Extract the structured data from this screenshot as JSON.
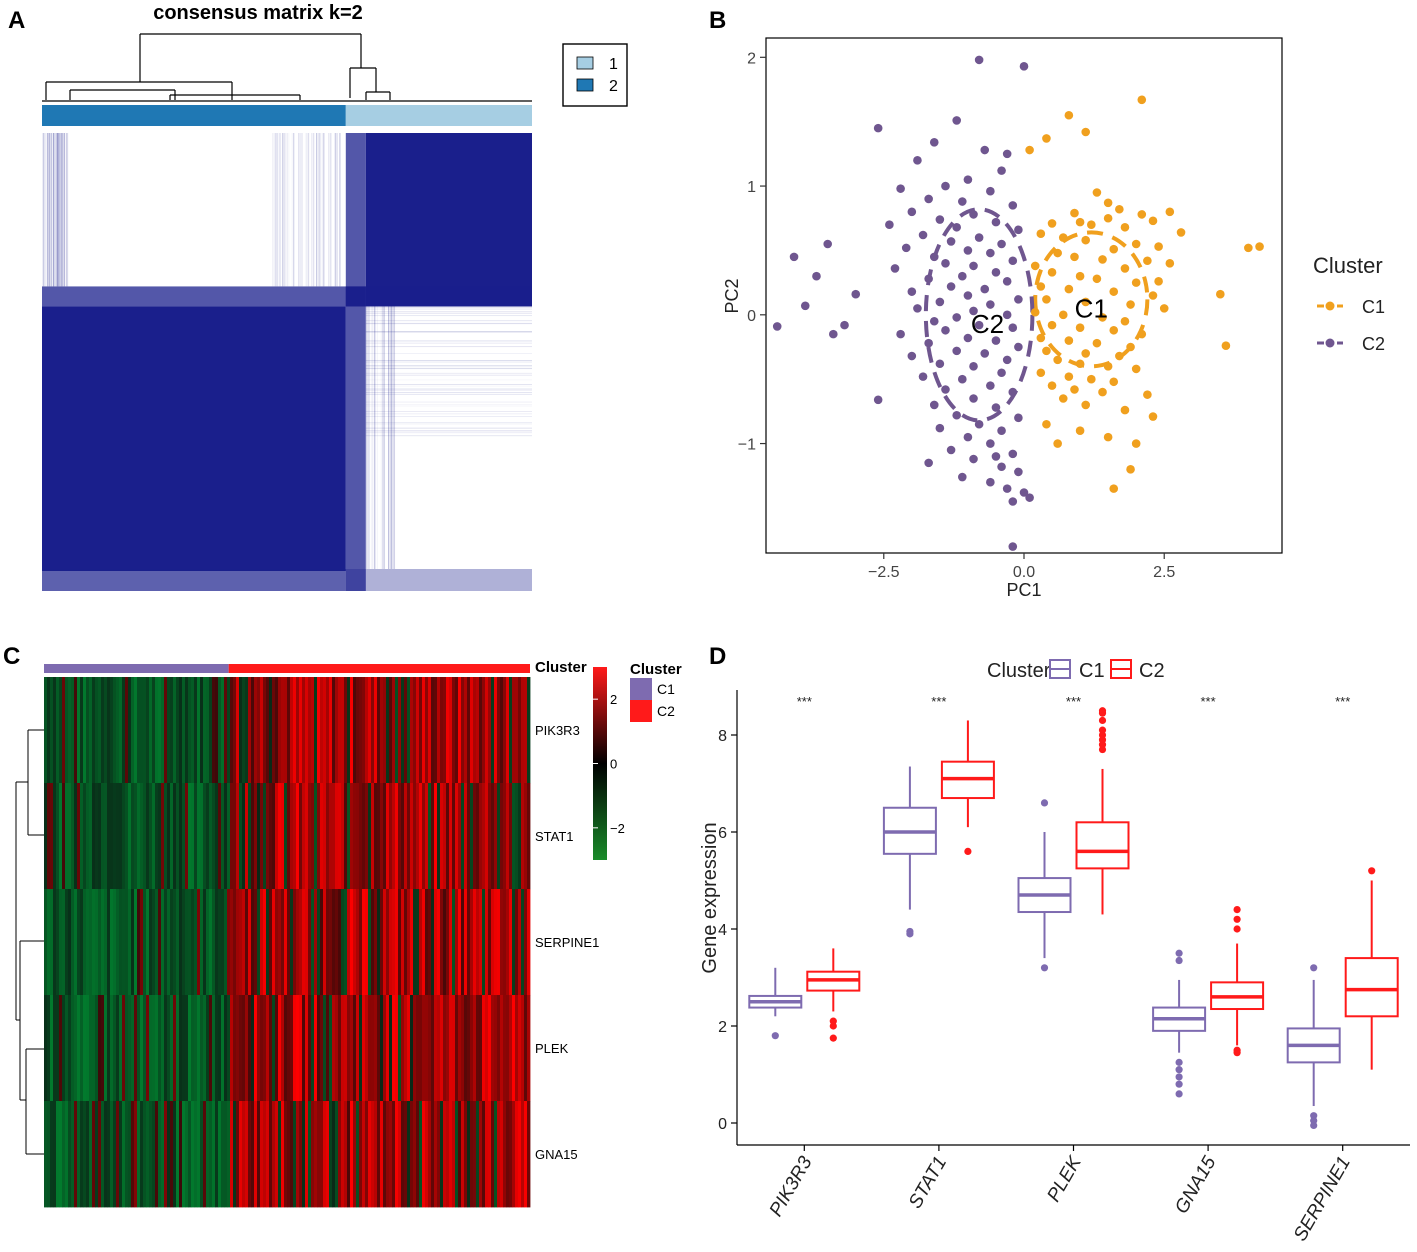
{
  "chart_data": [
    {
      "panel": "A",
      "type": "heatmap",
      "title": "consensus matrix k=2",
      "legend": {
        "entries": [
          "1",
          "2"
        ],
        "colors": [
          "#a6cee3",
          "#1f78b4"
        ],
        "placement": "top-right"
      },
      "cluster_bar": [
        {
          "cluster": "2",
          "fraction": 0.62
        },
        {
          "cluster": "1",
          "fraction": 0.38
        }
      ],
      "blocks": [
        {
          "rows": "cluster 2",
          "cols": "cluster 2",
          "value": 1
        },
        {
          "rows": "cluster 1",
          "cols": "cluster 1",
          "value": 1
        },
        {
          "rows": "cluster 1",
          "cols": "cluster 2",
          "value": 0
        },
        {
          "rows": "cluster 2",
          "cols": "cluster 1",
          "value": 0
        }
      ],
      "colors": {
        "high": "#1a1f8c",
        "low": "#ffffff"
      }
    },
    {
      "panel": "B",
      "type": "scatter",
      "xlabel": "PC1",
      "ylabel": "PC2",
      "xlim": [
        -4.6,
        4.6
      ],
      "ylim": [
        -1.85,
        2.15
      ],
      "xticks": [
        {
          "v": -2.5,
          "t": "−2.5"
        },
        {
          "v": 0,
          "t": "0.0"
        },
        {
          "v": 2.5,
          "t": "2.5"
        }
      ],
      "yticks": [
        {
          "v": -1,
          "t": "−1"
        },
        {
          "v": 0,
          "t": "0"
        },
        {
          "v": 1,
          "t": "1"
        },
        {
          "v": 2,
          "t": "2"
        }
      ],
      "legend_title": "Cluster",
      "series": [
        {
          "name": "C1",
          "color": "#f0a01e",
          "center": [
            1.2,
            0.12
          ],
          "ellipse": [
            1.0,
            0.52
          ],
          "points": [
            [
              2.1,
              1.67
            ],
            [
              0.8,
              1.55
            ],
            [
              1.1,
              1.42
            ],
            [
              0.4,
              1.37
            ],
            [
              0.1,
              1.28
            ],
            [
              1.3,
              0.95
            ],
            [
              1.5,
              0.87
            ],
            [
              1.7,
              0.82
            ],
            [
              2.1,
              0.78
            ],
            [
              2.6,
              0.8
            ],
            [
              0.9,
              0.79
            ],
            [
              1.5,
              0.75
            ],
            [
              2.3,
              0.73
            ],
            [
              0.5,
              0.71
            ],
            [
              1.0,
              0.72
            ],
            [
              1.2,
              0.7
            ],
            [
              1.8,
              0.68
            ],
            [
              2.8,
              0.64
            ],
            [
              0.3,
              0.63
            ],
            [
              0.7,
              0.6
            ],
            [
              1.1,
              0.58
            ],
            [
              2.0,
              0.55
            ],
            [
              2.4,
              0.53
            ],
            [
              1.6,
              0.51
            ],
            [
              0.6,
              0.48
            ],
            [
              0.9,
              0.45
            ],
            [
              1.4,
              0.43
            ],
            [
              2.2,
              0.42
            ],
            [
              2.6,
              0.4
            ],
            [
              0.2,
              0.38
            ],
            [
              1.8,
              0.36
            ],
            [
              0.5,
              0.33
            ],
            [
              1.0,
              0.3
            ],
            [
              1.3,
              0.28
            ],
            [
              2.0,
              0.25
            ],
            [
              2.4,
              0.26
            ],
            [
              0.3,
              0.22
            ],
            [
              0.8,
              0.2
            ],
            [
              1.6,
              0.18
            ],
            [
              2.3,
              0.15
            ],
            [
              0.4,
              0.12
            ],
            [
              1.1,
              0.1
            ],
            [
              1.9,
              0.08
            ],
            [
              2.5,
              0.05
            ],
            [
              0.2,
              0.02
            ],
            [
              0.7,
              0.0
            ],
            [
              1.4,
              -0.02
            ],
            [
              1.8,
              -0.05
            ],
            [
              0.5,
              -0.08
            ],
            [
              1.0,
              -0.1
            ],
            [
              1.6,
              -0.12
            ],
            [
              2.1,
              -0.15
            ],
            [
              0.3,
              -0.18
            ],
            [
              0.8,
              -0.2
            ],
            [
              1.3,
              -0.22
            ],
            [
              1.9,
              -0.25
            ],
            [
              0.4,
              -0.28
            ],
            [
              1.1,
              -0.3
            ],
            [
              1.7,
              -0.32
            ],
            [
              0.6,
              -0.35
            ],
            [
              1.0,
              -0.38
            ],
            [
              1.5,
              -0.4
            ],
            [
              2.0,
              -0.42
            ],
            [
              0.3,
              -0.45
            ],
            [
              0.8,
              -0.48
            ],
            [
              1.2,
              -0.5
            ],
            [
              1.6,
              -0.52
            ],
            [
              0.5,
              -0.55
            ],
            [
              0.9,
              -0.58
            ],
            [
              1.4,
              -0.6
            ],
            [
              2.2,
              -0.62
            ],
            [
              0.7,
              -0.65
            ],
            [
              1.1,
              -0.7
            ],
            [
              1.8,
              -0.74
            ],
            [
              2.3,
              -0.79
            ],
            [
              0.4,
              -0.85
            ],
            [
              1.0,
              -0.9
            ],
            [
              1.5,
              -0.95
            ],
            [
              0.6,
              -1.0
            ],
            [
              2.0,
              -1.0
            ],
            [
              1.9,
              -1.2
            ],
            [
              1.6,
              -1.35
            ],
            [
              3.5,
              0.16
            ],
            [
              3.6,
              -0.24
            ],
            [
              4.0,
              0.52
            ],
            [
              4.2,
              0.53
            ]
          ]
        },
        {
          "name": "C2",
          "color": "#6f568f",
          "center": [
            -0.8,
            0.0
          ],
          "ellipse": [
            0.95,
            0.82
          ],
          "points": [
            [
              -0.8,
              1.98
            ],
            [
              0.0,
              1.93
            ],
            [
              -2.6,
              1.45
            ],
            [
              -1.2,
              1.51
            ],
            [
              -1.6,
              1.34
            ],
            [
              -0.7,
              1.28
            ],
            [
              -0.3,
              1.25
            ],
            [
              -1.9,
              1.2
            ],
            [
              -0.4,
              1.12
            ],
            [
              -1.0,
              1.05
            ],
            [
              -1.4,
              1.0
            ],
            [
              -2.2,
              0.98
            ],
            [
              -0.6,
              0.96
            ],
            [
              -1.7,
              0.9
            ],
            [
              -1.1,
              0.88
            ],
            [
              -0.2,
              0.85
            ],
            [
              -2.0,
              0.8
            ],
            [
              -0.9,
              0.78
            ],
            [
              -1.5,
              0.74
            ],
            [
              -0.5,
              0.72
            ],
            [
              -2.4,
              0.7
            ],
            [
              -1.2,
              0.68
            ],
            [
              -0.1,
              0.66
            ],
            [
              -1.8,
              0.62
            ],
            [
              -0.8,
              0.6
            ],
            [
              -1.3,
              0.57
            ],
            [
              -0.4,
              0.55
            ],
            [
              -2.1,
              0.52
            ],
            [
              -1.0,
              0.5
            ],
            [
              -0.6,
              0.48
            ],
            [
              -1.6,
              0.45
            ],
            [
              -3.5,
              0.55
            ],
            [
              -4.1,
              0.45
            ],
            [
              -3.7,
              0.3
            ],
            [
              -0.2,
              0.42
            ],
            [
              -1.4,
              0.4
            ],
            [
              -0.9,
              0.38
            ],
            [
              -2.3,
              0.36
            ],
            [
              -0.5,
              0.33
            ],
            [
              -1.1,
              0.3
            ],
            [
              -3.0,
              0.16
            ],
            [
              -1.7,
              0.28
            ],
            [
              -0.3,
              0.26
            ],
            [
              -1.3,
              0.22
            ],
            [
              -0.7,
              0.2
            ],
            [
              -2.0,
              0.18
            ],
            [
              -1.0,
              0.15
            ],
            [
              -0.1,
              0.12
            ],
            [
              -1.5,
              0.1
            ],
            [
              -0.6,
              0.08
            ],
            [
              -3.9,
              0.07
            ],
            [
              -1.9,
              0.05
            ],
            [
              -0.9,
              0.03
            ],
            [
              -0.3,
              0.0
            ],
            [
              -1.2,
              -0.02
            ],
            [
              -4.4,
              -0.09
            ],
            [
              -3.4,
              -0.15
            ],
            [
              -3.2,
              -0.08
            ],
            [
              -1.6,
              -0.05
            ],
            [
              -0.8,
              -0.08
            ],
            [
              -0.2,
              -0.1
            ],
            [
              -1.4,
              -0.12
            ],
            [
              -2.2,
              -0.15
            ],
            [
              -1.0,
              -0.18
            ],
            [
              -0.5,
              -0.2
            ],
            [
              -1.7,
              -0.22
            ],
            [
              -0.1,
              -0.25
            ],
            [
              -1.2,
              -0.28
            ],
            [
              -0.7,
              -0.3
            ],
            [
              -2.0,
              -0.32
            ],
            [
              -0.3,
              -0.35
            ],
            [
              -1.5,
              -0.38
            ],
            [
              -0.9,
              -0.4
            ],
            [
              -0.4,
              -0.45
            ],
            [
              -1.8,
              -0.48
            ],
            [
              -1.1,
              -0.5
            ],
            [
              -0.6,
              -0.55
            ],
            [
              -2.6,
              -0.66
            ],
            [
              -1.4,
              -0.58
            ],
            [
              -0.2,
              -0.6
            ],
            [
              -0.9,
              -0.65
            ],
            [
              -1.6,
              -0.7
            ],
            [
              -0.5,
              -0.72
            ],
            [
              -1.2,
              -0.78
            ],
            [
              -0.1,
              -0.8
            ],
            [
              -0.8,
              -0.85
            ],
            [
              -1.5,
              -0.88
            ],
            [
              -0.4,
              -0.9
            ],
            [
              -1.0,
              -0.95
            ],
            [
              -0.6,
              -1.0
            ],
            [
              -1.3,
              -1.05
            ],
            [
              -0.2,
              -1.08
            ],
            [
              -0.9,
              -1.12
            ],
            [
              -1.7,
              -1.15
            ],
            [
              -0.4,
              -1.18
            ],
            [
              -0.1,
              -1.22
            ],
            [
              -1.1,
              -1.26
            ],
            [
              -0.6,
              -1.3
            ],
            [
              -0.3,
              -1.35
            ],
            [
              0.0,
              -1.38
            ],
            [
              -0.2,
              -1.45
            ],
            [
              0.1,
              -1.42
            ],
            [
              -0.5,
              -1.1
            ],
            [
              -0.2,
              -1.8
            ]
          ]
        }
      ],
      "labels": [
        {
          "text": "C1",
          "at": [
            1.2,
            0.04
          ]
        },
        {
          "text": "C2",
          "at": [
            -0.65,
            -0.08
          ]
        }
      ]
    },
    {
      "panel": "C",
      "type": "heatmap",
      "rows": [
        "PIK3R3",
        "STAT1",
        "SERPINE1",
        "PLEK",
        "GNA15"
      ],
      "annotation_title": "Cluster",
      "annotation": [
        {
          "name": "C1",
          "color": "#7e6bb0",
          "fraction": 0.38
        },
        {
          "name": "C2",
          "color": "#ff1a1a",
          "fraction": 0.62
        }
      ],
      "colorbar": {
        "ticks": [
          {
            "v": 2,
            "t": "2"
          },
          {
            "v": 0,
            "t": "0"
          },
          {
            "v": -2,
            "t": "−2"
          }
        ],
        "range": [
          -3,
          3
        ]
      },
      "legend_title": "Cluster"
    },
    {
      "panel": "D",
      "type": "box",
      "ylabel": "Gene expression",
      "legend_title": "Cluster",
      "categories": [
        "PIK3R3",
        "STAT1",
        "PLEK",
        "GNA15",
        "SERPINE1"
      ],
      "significance": [
        "***",
        "***",
        "***",
        "***",
        "***"
      ],
      "ylim": [
        -0.2,
        8.85
      ],
      "yticks": [
        {
          "v": 0,
          "t": "0"
        },
        {
          "v": 2,
          "t": "2"
        },
        {
          "v": 4,
          "t": "4"
        },
        {
          "v": 6,
          "t": "6"
        },
        {
          "v": 8,
          "t": "8"
        }
      ],
      "series": [
        {
          "name": "C1",
          "color": "#7e6bb0",
          "boxes": [
            {
              "lw": 2.2,
              "q1": 2.38,
              "med": 2.5,
              "q3": 2.62,
              "hw": 3.2,
              "out": [
                1.8
              ]
            },
            {
              "lw": 4.4,
              "q1": 5.55,
              "med": 6.0,
              "q3": 6.5,
              "hw": 7.35,
              "out": [
                3.95,
                3.9
              ]
            },
            {
              "lw": 3.4,
              "q1": 4.35,
              "med": 4.7,
              "q3": 5.05,
              "hw": 6.0,
              "out": [
                3.2,
                6.6
              ]
            },
            {
              "lw": 1.45,
              "q1": 1.9,
              "med": 2.15,
              "q3": 2.38,
              "hw": 2.95,
              "out": [
                1.25,
                1.1,
                0.95,
                0.8,
                0.6,
                3.35,
                3.5
              ]
            },
            {
              "lw": 0.35,
              "q1": 1.25,
              "med": 1.6,
              "q3": 1.95,
              "hw": 2.95,
              "out": [
                0.15,
                0.05,
                -0.05,
                3.2
              ]
            }
          ]
        },
        {
          "name": "C2",
          "color": "#ff1a1a",
          "boxes": [
            {
              "lw": 2.3,
              "q1": 2.73,
              "med": 2.95,
              "q3": 3.12,
              "hw": 3.6,
              "out": [
                2.1,
                2.0,
                1.75
              ]
            },
            {
              "lw": 6.1,
              "q1": 6.7,
              "med": 7.1,
              "q3": 7.45,
              "hw": 8.3,
              "out": [
                5.6
              ]
            },
            {
              "lw": 4.3,
              "q1": 5.25,
              "med": 5.6,
              "q3": 6.2,
              "hw": 7.3,
              "out": [
                7.7,
                7.8,
                7.9,
                8.0,
                8.1,
                8.3,
                8.5,
                8.45
              ]
            },
            {
              "lw": 1.6,
              "q1": 2.35,
              "med": 2.6,
              "q3": 2.9,
              "hw": 3.7,
              "out": [
                1.45,
                1.5,
                4.0,
                4.2,
                4.4
              ]
            },
            {
              "lw": 1.1,
              "q1": 2.2,
              "med": 2.75,
              "q3": 3.4,
              "hw": 5.0,
              "out": [
                5.2
              ]
            }
          ]
        }
      ]
    }
  ],
  "panel_letters": [
    "A",
    "B",
    "C",
    "D"
  ]
}
